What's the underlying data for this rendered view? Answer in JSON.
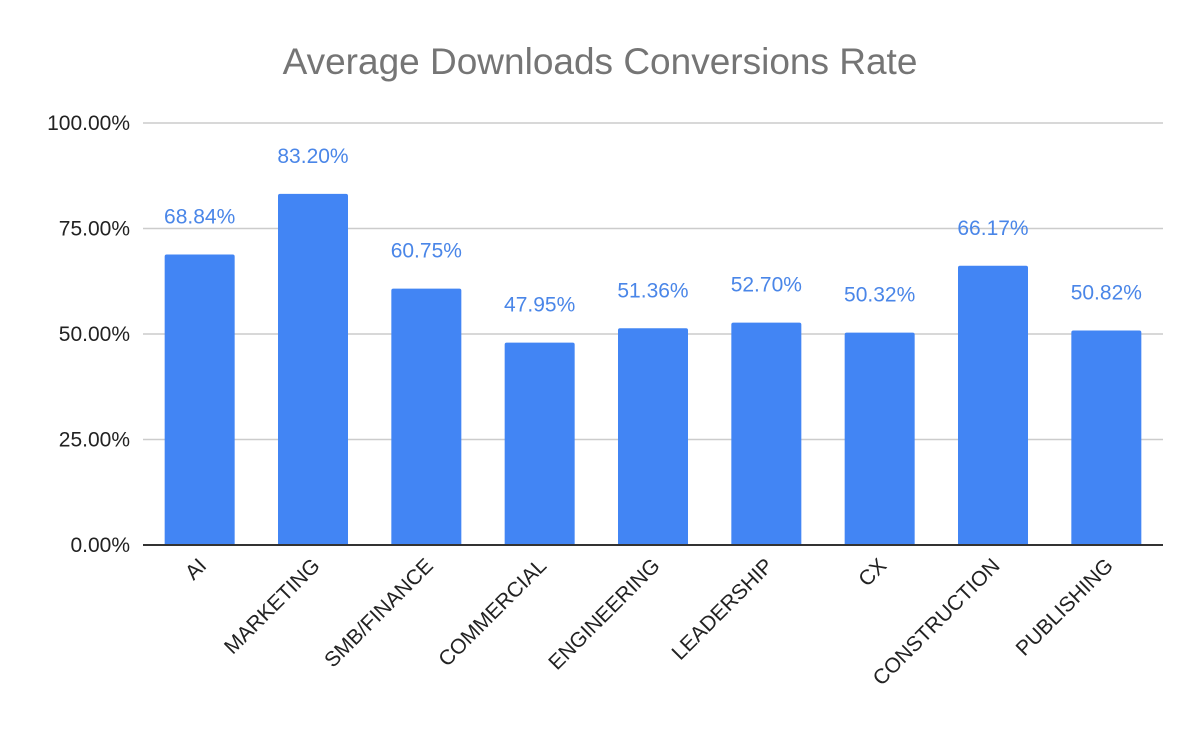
{
  "chart_data": {
    "type": "bar",
    "title": "Average Downloads Conversions Rate",
    "xlabel": "",
    "ylabel": "",
    "categories": [
      "AI",
      "MARKETING",
      "SMB/FINANCE",
      "COMMERCIAL",
      "ENGINEERING",
      "LEADERSHIP",
      "CX",
      "CONSTRUCTION",
      "PUBLISHING"
    ],
    "values": [
      68.84,
      83.2,
      60.75,
      47.95,
      51.36,
      52.7,
      50.32,
      66.17,
      50.82
    ],
    "data_labels": [
      "68.84%",
      "83.20%",
      "60.75%",
      "47.95%",
      "51.36%",
      "52.70%",
      "50.32%",
      "66.17%",
      "50.82%"
    ],
    "ylim": [
      0,
      100
    ],
    "y_ticks": [
      0,
      25,
      50,
      75,
      100
    ],
    "y_tick_labels": [
      "0.00%",
      "25.00%",
      "50.00%",
      "75.00%",
      "100.00%"
    ],
    "grid": true,
    "legend": "none",
    "colors": {
      "bar": "#4285f4",
      "data_label": "#4a86e8",
      "grid": "#cccccc",
      "axis": "#333333",
      "title": "#757575"
    }
  }
}
